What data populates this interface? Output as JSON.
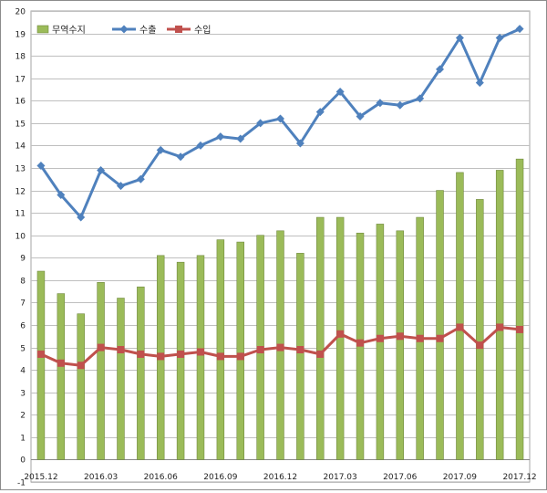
{
  "chart_data": {
    "type": "bar+line",
    "title": "",
    "categories": [
      "2015.12",
      "2016.01",
      "2016.02",
      "2016.03",
      "2016.04",
      "2016.05",
      "2016.06",
      "2016.07",
      "2016.08",
      "2016.09",
      "2016.10",
      "2016.11",
      "2016.12",
      "2017.01",
      "2017.02",
      "2017.03",
      "2017.04",
      "2017.05",
      "2017.06",
      "2017.07",
      "2017.08",
      "2017.09",
      "2017.10",
      "2017.11",
      "2017.12"
    ],
    "x_tick_labels": [
      "2015.12",
      "2016.03",
      "2016.06",
      "2016.09",
      "2016.12",
      "2017.03",
      "2017.06",
      "2017.09",
      "2017.12"
    ],
    "x_tick_every": 3,
    "ylim": [
      -1,
      20
    ],
    "y_ticks": [
      "-1",
      "0",
      "1",
      "2",
      "3",
      "4",
      "5",
      "6",
      "7",
      "8",
      "9",
      "10",
      "11",
      "12",
      "13",
      "14",
      "15",
      "16",
      "17",
      "18",
      "19",
      "20"
    ],
    "grid": true,
    "legend_position": "top-left",
    "series": [
      {
        "name": "무역수지",
        "kind": "bar",
        "color": "#9bbb59",
        "values": [
          8.4,
          7.4,
          6.5,
          7.9,
          7.2,
          7.7,
          9.1,
          8.8,
          9.1,
          9.8,
          9.7,
          10.0,
          10.2,
          9.2,
          10.8,
          10.8,
          10.1,
          10.5,
          10.2,
          10.8,
          12.0,
          12.8,
          11.6,
          12.9,
          13.4
        ]
      },
      {
        "name": "수출",
        "kind": "line",
        "color": "#4f81bd",
        "marker": "diamond",
        "values": [
          13.1,
          11.8,
          10.8,
          12.9,
          12.2,
          12.5,
          13.8,
          13.5,
          14.0,
          14.4,
          14.3,
          15.0,
          15.2,
          14.1,
          15.5,
          16.4,
          15.3,
          15.9,
          15.8,
          16.1,
          17.4,
          18.8,
          16.8,
          18.8,
          19.2
        ]
      },
      {
        "name": "수입",
        "kind": "line",
        "color": "#c0504d",
        "marker": "square",
        "values": [
          4.7,
          4.3,
          4.2,
          5.0,
          4.9,
          4.7,
          4.6,
          4.7,
          4.8,
          4.6,
          4.6,
          4.9,
          5.0,
          4.9,
          4.7,
          5.6,
          5.2,
          5.4,
          5.5,
          5.4,
          5.4,
          5.9,
          5.1,
          5.9,
          5.8
        ]
      }
    ]
  }
}
